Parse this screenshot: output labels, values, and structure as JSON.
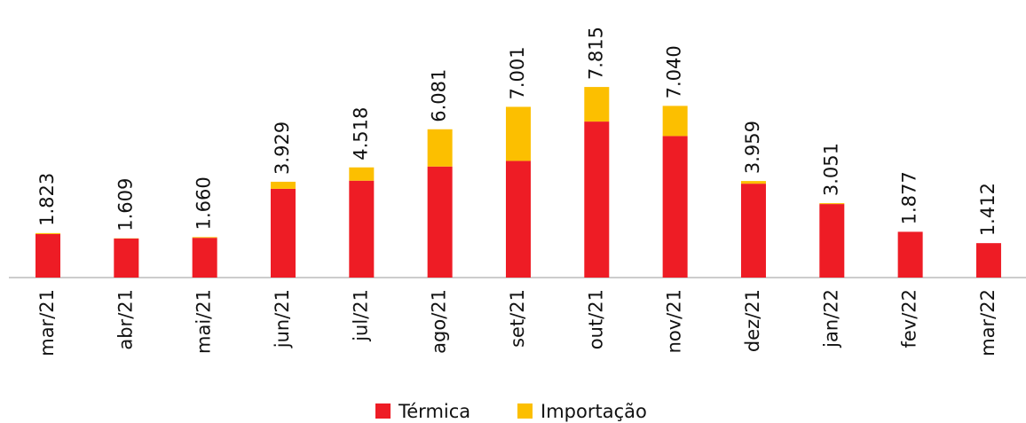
{
  "chart_data": {
    "type": "stacked_bar",
    "categories": [
      "mar/21",
      "abr/21",
      "mai/21",
      "jun/21",
      "jul/21",
      "ago/21",
      "set/21",
      "out/21",
      "nov/21",
      "dez/21",
      "jan/22",
      "fev/22",
      "mar/22"
    ],
    "series": [
      {
        "name": "Térmica",
        "color": "#ee1c25",
        "values": [
          1783,
          1599,
          1630,
          3639,
          3973,
          4554,
          4784,
          6397,
          5804,
          3850,
          3015,
          1877,
          1412
        ]
      },
      {
        "name": "Importação",
        "color": "#fcbf00",
        "values": [
          40,
          10,
          30,
          290,
          545,
          1527,
          2217,
          1418,
          1236,
          109,
          36,
          0,
          0
        ]
      }
    ],
    "values": [
      1823,
      1609,
      1660,
      3929,
      4518,
      6081,
      7001,
      7815,
      7040,
      3959,
      3051,
      1877,
      1412
    ],
    "value_labels": [
      "1.823",
      "1.609",
      "1.660",
      "3.929",
      "4.518",
      "6.081",
      "7.001",
      "7.815",
      "7.040",
      "3.959",
      "3.051",
      "1.877",
      "1.412"
    ],
    "ylim": [
      0,
      8000
    ],
    "legend": "bottom"
  }
}
